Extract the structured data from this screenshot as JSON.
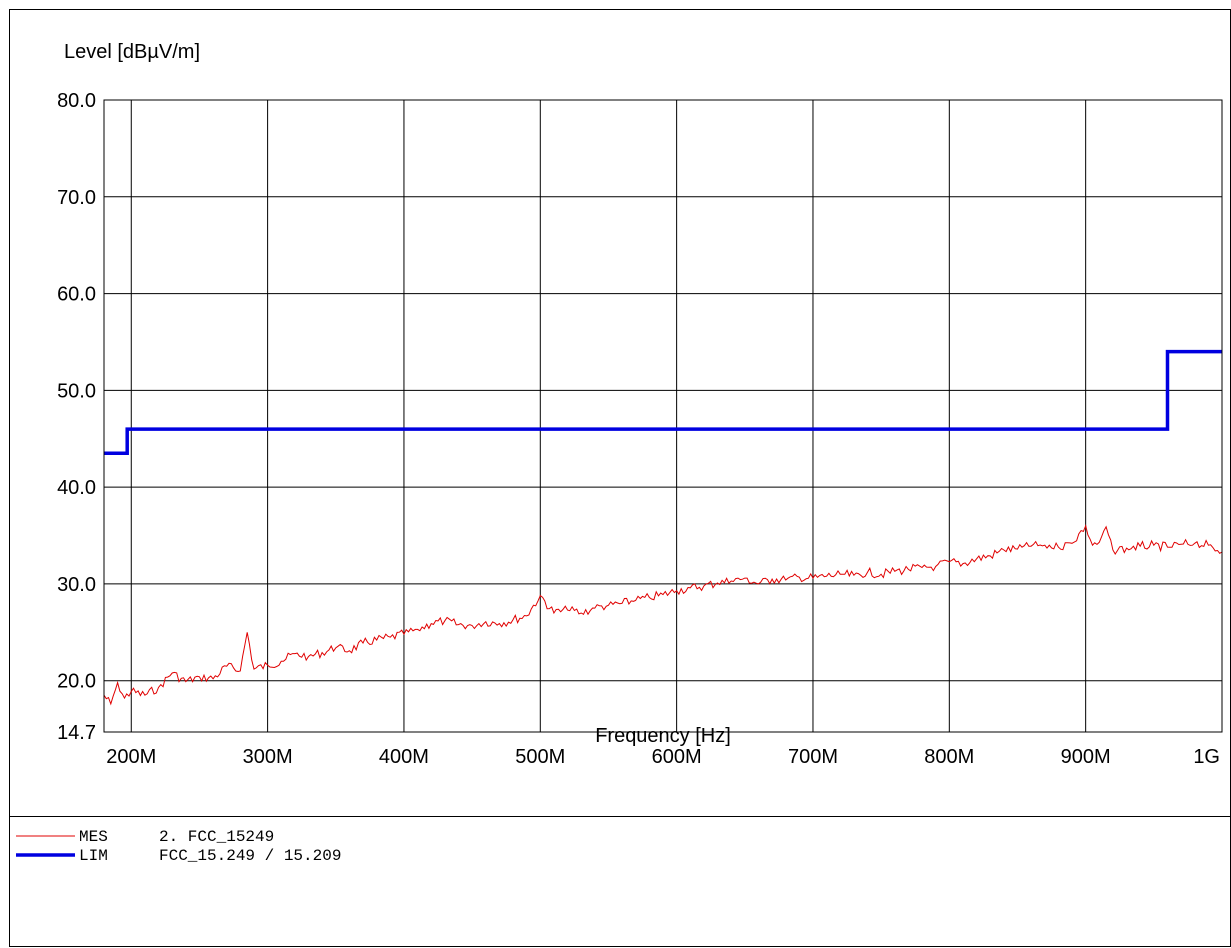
{
  "chart_data": {
    "type": "line",
    "title": "",
    "ylabel": "Level [dBµV/m]",
    "xlabel": "Frequency [Hz]",
    "ylim": [
      14.7,
      80.0
    ],
    "xlim": [
      180,
      1000
    ],
    "x_unit": "MHz",
    "y_ticks": [
      {
        "value": 80.0,
        "label": "80.0"
      },
      {
        "value": 70.0,
        "label": "70.0"
      },
      {
        "value": 60.0,
        "label": "60.0"
      },
      {
        "value": 50.0,
        "label": "50.0"
      },
      {
        "value": 40.0,
        "label": "40.0"
      },
      {
        "value": 30.0,
        "label": "30.0"
      },
      {
        "value": 20.0,
        "label": "20.0"
      },
      {
        "value": 14.7,
        "label": "14.7"
      }
    ],
    "x_ticks": [
      {
        "value": 200,
        "label": "200M"
      },
      {
        "value": 300,
        "label": "300M"
      },
      {
        "value": 400,
        "label": "400M"
      },
      {
        "value": 500,
        "label": "500M"
      },
      {
        "value": 600,
        "label": "600M"
      },
      {
        "value": 700,
        "label": "700M"
      },
      {
        "value": 800,
        "label": "800M"
      },
      {
        "value": 900,
        "label": "900M"
      },
      {
        "value": 1000,
        "label": "1G"
      }
    ],
    "grid": true,
    "series": [
      {
        "name": "MES 2. FCC_15249",
        "color": "#e00000",
        "style": "thin",
        "x": [
          180,
          185,
          190,
          195,
          200,
          210,
          220,
          230,
          240,
          250,
          260,
          270,
          280,
          285,
          290,
          300,
          310,
          320,
          330,
          340,
          350,
          360,
          370,
          380,
          390,
          400,
          410,
          420,
          430,
          440,
          450,
          460,
          470,
          480,
          490,
          500,
          510,
          520,
          530,
          540,
          550,
          560,
          570,
          580,
          590,
          600,
          610,
          620,
          630,
          640,
          650,
          660,
          670,
          680,
          690,
          700,
          710,
          720,
          730,
          740,
          750,
          760,
          770,
          780,
          790,
          800,
          810,
          820,
          830,
          840,
          850,
          860,
          870,
          880,
          890,
          900,
          905,
          910,
          915,
          920,
          930,
          940,
          950,
          960,
          970,
          980,
          990,
          1000
        ],
        "y": [
          18.5,
          17.6,
          19.8,
          18.2,
          18.9,
          18.5,
          19.3,
          20.8,
          19.9,
          20.4,
          20.2,
          21.5,
          21.0,
          25.0,
          21.2,
          21.6,
          22.0,
          22.8,
          22.5,
          22.9,
          23.4,
          23.1,
          23.9,
          24.2,
          24.5,
          24.8,
          25.3,
          25.9,
          26.2,
          25.8,
          25.7,
          26.1,
          25.9,
          26.3,
          26.7,
          28.8,
          27.0,
          27.3,
          27.0,
          27.5,
          27.8,
          28.0,
          28.3,
          28.6,
          28.9,
          29.3,
          29.6,
          29.8,
          30.1,
          30.3,
          30.6,
          30.0,
          30.5,
          30.4,
          30.7,
          30.6,
          30.8,
          31.0,
          30.9,
          31.2,
          31.0,
          31.3,
          31.5,
          31.7,
          31.8,
          32.3,
          32.1,
          32.6,
          32.9,
          33.5,
          33.6,
          33.9,
          34.0,
          33.8,
          34.2,
          36.0,
          34.0,
          34.3,
          35.9,
          33.5,
          33.7,
          33.9,
          34.0,
          33.8,
          34.1,
          34.2,
          34.0,
          33.3
        ]
      },
      {
        "name": "LIM FCC_15.249 / 15.209",
        "color": "#0000e0",
        "style": "thick",
        "x": [
          180,
          197,
          197,
          960,
          960,
          1000
        ],
        "y": [
          43.5,
          43.5,
          46.0,
          46.0,
          54.0,
          54.0
        ]
      }
    ],
    "legend": {
      "position": "bottom-left",
      "entries": [
        {
          "tag": "MES",
          "name": "2. FCC_15249",
          "color": "#e00000",
          "style": "thin"
        },
        {
          "tag": "LIM",
          "name": "FCC_15.249 / 15.209",
          "color": "#0000e0",
          "style": "thick"
        }
      ]
    }
  }
}
